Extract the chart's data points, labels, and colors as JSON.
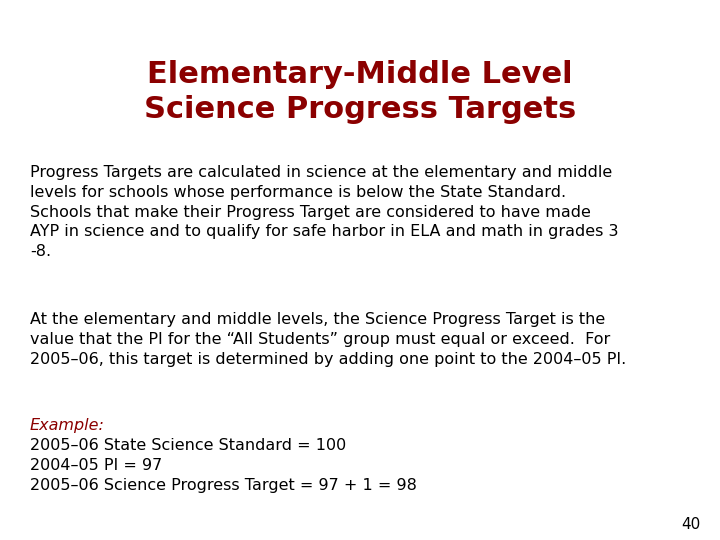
{
  "title_line1": "Elementary-Middle Level",
  "title_line2": "Science Progress Targets",
  "title_color": "#8B0000",
  "title_fontsize": 22,
  "body_color": "#000000",
  "body_fontsize": 11.5,
  "example_color": "#8B0000",
  "example_label": "Example:",
  "example_fontsize": 11.5,
  "page_number": "40",
  "page_number_fontsize": 11,
  "background_color": "#ffffff",
  "paragraph1": "Progress Targets are calculated in science at the elementary and middle\nlevels for schools whose performance is below the State Standard.\nSchools that make their Progress Target are considered to have made\nAYP in science and to qualify for safe harbor in ELA and math in grades 3\n-8.",
  "paragraph2": "At the elementary and middle levels, the Science Progress Target is the\nvalue that the PI for the “All Students” group must equal or exceed.  For\n2005–06, this target is determined by adding one point to the 2004–05 PI.",
  "example_lines": [
    "2005–06 State Science Standard = 100",
    "2004–05 PI = 97",
    "2005–06 Science Progress Target = 97 + 1 = 98"
  ]
}
